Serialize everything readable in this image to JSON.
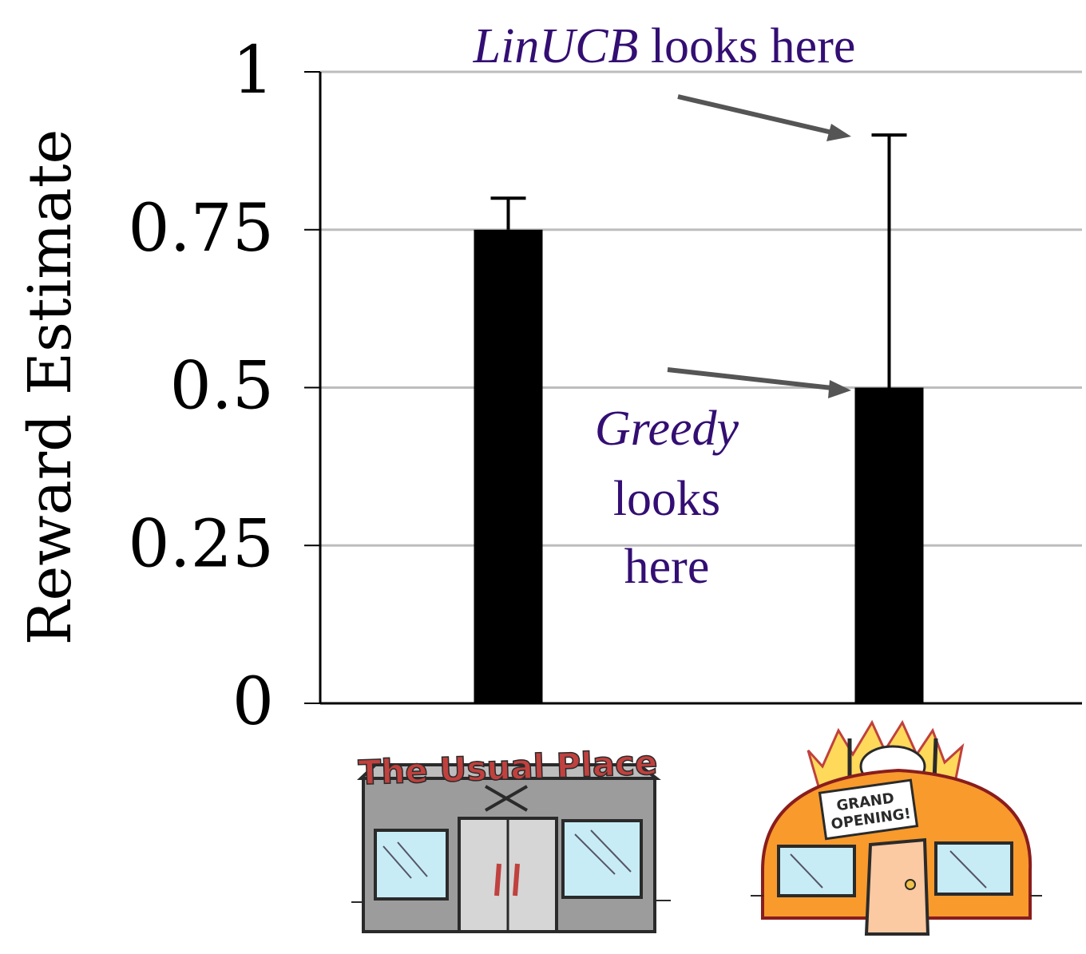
{
  "chart_data": {
    "type": "bar",
    "title": "",
    "xlabel": "",
    "ylabel": "Reward Estimate",
    "ylim": [
      0,
      1
    ],
    "yticks": [
      0,
      0.25,
      0.5,
      0.75,
      1
    ],
    "ytick_labels": [
      "0",
      "0.25",
      "0.5",
      "0.75",
      "1"
    ],
    "grid": "horizontal",
    "categories": [
      "The Usual Place",
      "GRAND OPENING!"
    ],
    "values": [
      0.75,
      0.5
    ],
    "error_upper": [
      0.8,
      0.9
    ],
    "bar_color": "#000000",
    "annotations": [
      {
        "target": "upper-bound-category-2",
        "emph": "LinUCB",
        "rest": "looks here",
        "color": "#330e73"
      },
      {
        "target": "bar-top-category-2",
        "lines": [
          "Greedy",
          "looks",
          "here"
        ],
        "color": "#330e73"
      }
    ]
  },
  "illustrations": {
    "usual_place_sign": "The Usual Place",
    "usual_place_colors": {
      "sign": "#c0413e",
      "wall": "#9c9c9c",
      "window": "#c7ecf5",
      "door": "#d6d6d6"
    },
    "new_place_sign": "GRAND OPENING!",
    "new_place_sign_lines": [
      "GRAND",
      "OPENING!"
    ],
    "new_place_colors": {
      "dome": "#f89a2c",
      "burst": "#ffd95a",
      "window": "#c7ecf5",
      "door": "#fbc9a2"
    }
  }
}
